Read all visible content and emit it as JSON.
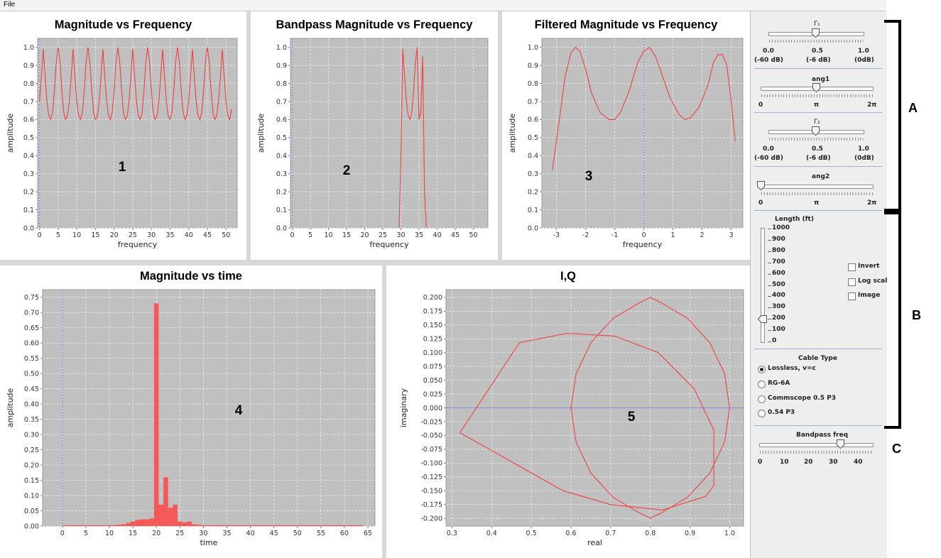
{
  "menu": {
    "file": "File"
  },
  "charts": [
    {
      "id": "c1",
      "type": "line",
      "title": "Magnitude vs Frequency",
      "xlabel": "frequency",
      "ylabel": "amplitude",
      "marker": "1",
      "xlim": [
        -0.5,
        53
      ],
      "ylim": [
        0,
        1.05
      ],
      "xticks": [
        0,
        5,
        10,
        15,
        20,
        25,
        30,
        35,
        40,
        45,
        50
      ],
      "yticks": [
        0.0,
        0.1,
        0.2,
        0.3,
        0.4,
        0.5,
        0.6,
        0.7,
        0.8,
        0.9,
        1.0
      ],
      "ytick_labels": [
        "0.0",
        "0.1",
        "0.2",
        "0.3",
        "0.4",
        "0.5",
        "0.6",
        "0.7",
        "0.8",
        "0.9",
        "1.0"
      ],
      "series": [
        {
          "color": "#f04040",
          "x": [
            0,
            0.5,
            1.0,
            1.5,
            2.0,
            2.5,
            3.0,
            3.5,
            4.0,
            4.5,
            5.0,
            5.5,
            6.0,
            6.5,
            7.0,
            7.5,
            8.0,
            8.5,
            9.0,
            9.5,
            10.0,
            10.5,
            11.0,
            11.5,
            12.0,
            12.5,
            13.0,
            13.5,
            14.0,
            14.5,
            15.0,
            15.5,
            16.0,
            16.5,
            17.0,
            17.5,
            18.0,
            18.5,
            19.0,
            19.5,
            20.0,
            20.5,
            21.0,
            21.5,
            22.0,
            22.5,
            23.0,
            23.5,
            24.0,
            24.5,
            25.0,
            25.5,
            26.0,
            26.5,
            27.0,
            27.5,
            28.0,
            28.5,
            29.0,
            29.5,
            30.0,
            30.5,
            31.0,
            31.5,
            32.0,
            32.5,
            33.0,
            33.5,
            34.0,
            34.5,
            35.0,
            35.5,
            36.0,
            36.5,
            37.0,
            37.5,
            38.0,
            38.5,
            39.0,
            39.5,
            40.0,
            40.5,
            41.0,
            41.5,
            42.0,
            42.5,
            43.0,
            43.5,
            44.0,
            44.5,
            45.0,
            45.5,
            46.0,
            46.5,
            47.0,
            47.5,
            48.0,
            48.5,
            49.0,
            49.5,
            50.0,
            50.5,
            51.0,
            51.5
          ],
          "y": [
            0.7,
            0.84,
            0.99,
            0.84,
            0.7,
            0.62,
            0.6,
            0.64,
            0.76,
            0.92,
            1.0,
            0.92,
            0.76,
            0.64,
            0.6,
            0.62,
            0.7,
            0.84,
            0.99,
            0.84,
            0.7,
            0.62,
            0.6,
            0.64,
            0.76,
            0.92,
            1.0,
            0.92,
            0.76,
            0.64,
            0.6,
            0.62,
            0.7,
            0.84,
            0.99,
            0.84,
            0.7,
            0.62,
            0.6,
            0.64,
            0.76,
            0.92,
            1.0,
            0.92,
            0.76,
            0.64,
            0.6,
            0.62,
            0.7,
            0.84,
            0.99,
            0.84,
            0.7,
            0.62,
            0.6,
            0.64,
            0.76,
            0.92,
            1.0,
            0.92,
            0.76,
            0.64,
            0.6,
            0.62,
            0.7,
            0.84,
            0.99,
            0.84,
            0.7,
            0.62,
            0.6,
            0.64,
            0.76,
            0.92,
            1.0,
            0.92,
            0.76,
            0.64,
            0.6,
            0.62,
            0.7,
            0.84,
            0.99,
            0.84,
            0.7,
            0.62,
            0.6,
            0.64,
            0.76,
            0.92,
            1.0,
            0.92,
            0.76,
            0.64,
            0.6,
            0.62,
            0.7,
            0.84,
            0.99,
            0.84,
            0.7,
            0.62,
            0.6,
            0.66
          ]
        }
      ]
    },
    {
      "id": "c2",
      "type": "line",
      "title": "Bandpass Magnitude vs Frequency",
      "xlabel": "frequency",
      "ylabel": "amplitude",
      "marker": "2",
      "xlim": [
        -0.5,
        54
      ],
      "ylim": [
        0,
        1.05
      ],
      "xticks": [
        0,
        5,
        10,
        15,
        20,
        25,
        30,
        35,
        40,
        45,
        50
      ],
      "yticks": [
        0.0,
        0.1,
        0.2,
        0.3,
        0.4,
        0.5,
        0.6,
        0.7,
        0.8,
        0.9,
        1.0
      ],
      "ytick_labels": [
        "0.0",
        "0.1",
        "0.2",
        "0.3",
        "0.4",
        "0.5",
        "0.6",
        "0.7",
        "0.8",
        "0.9",
        "1.0"
      ],
      "series": [
        {
          "color": "#f04040",
          "x": [
            29.5,
            30.0,
            30.5,
            31.0,
            31.5,
            32.0,
            32.5,
            33.0,
            33.5,
            34.0,
            34.5,
            35.0,
            35.5,
            36.0,
            36.5,
            37.0
          ],
          "y": [
            0.0,
            0.4,
            0.99,
            0.84,
            0.7,
            0.62,
            0.6,
            0.64,
            0.76,
            0.92,
            1.0,
            0.6,
            0.64,
            0.95,
            0.2,
            0.0
          ]
        }
      ]
    },
    {
      "id": "c3",
      "type": "line",
      "title": "Filtered Magnitude vs Frequency",
      "xlabel": "frequency",
      "ylabel": "amplitude",
      "marker": "3",
      "xlim": [
        -3.5,
        3.4
      ],
      "ylim": [
        0,
        1.05
      ],
      "xticks": [
        -3,
        -2,
        -1,
        0,
        1,
        2,
        3
      ],
      "yticks": [
        0.0,
        0.1,
        0.2,
        0.3,
        0.4,
        0.5,
        0.6,
        0.7,
        0.8,
        0.9,
        1.0
      ],
      "ytick_labels": [
        "0.0",
        "0.1",
        "0.2",
        "0.3",
        "0.4",
        "0.5",
        "0.6",
        "0.7",
        "0.8",
        "0.9",
        "1.0"
      ],
      "series": [
        {
          "color": "#f04040",
          "x": [
            -3.14,
            -2.9,
            -2.7,
            -2.5,
            -2.35,
            -2.2,
            -2.0,
            -1.8,
            -1.5,
            -1.2,
            -1.0,
            -0.8,
            -0.5,
            -0.2,
            0.0,
            0.2,
            0.4,
            0.6,
            0.9,
            1.2,
            1.4,
            1.6,
            1.9,
            2.2,
            2.4,
            2.55,
            2.7,
            2.85,
            3.0,
            3.14
          ],
          "y": [
            0.32,
            0.6,
            0.84,
            0.97,
            1.0,
            0.98,
            0.88,
            0.75,
            0.64,
            0.6,
            0.6,
            0.64,
            0.76,
            0.92,
            0.98,
            1.0,
            0.95,
            0.86,
            0.72,
            0.63,
            0.6,
            0.61,
            0.67,
            0.79,
            0.92,
            0.96,
            0.96,
            0.9,
            0.7,
            0.48
          ]
        }
      ]
    },
    {
      "id": "c4",
      "type": "bar",
      "title": "Magnitude vs time",
      "xlabel": "time",
      "ylabel": "amplitude",
      "marker": "4",
      "xlim": [
        -4.2,
        66.5
      ],
      "ylim": [
        0,
        0.775
      ],
      "xticks": [
        0,
        5,
        10,
        15,
        20,
        25,
        30,
        35,
        40,
        45,
        50,
        55,
        60,
        65
      ],
      "yticks": [
        0.0,
        0.05,
        0.1,
        0.15,
        0.2,
        0.25,
        0.3,
        0.35,
        0.4,
        0.45,
        0.5,
        0.55,
        0.6,
        0.65,
        0.7,
        0.75
      ],
      "ytick_labels": [
        "0.00",
        "0.05",
        "0.10",
        "0.15",
        "0.20",
        "0.25",
        "0.30",
        "0.35",
        "0.40",
        "0.45",
        "0.50",
        "0.55",
        "0.60",
        "0.65",
        "0.70",
        "0.75"
      ],
      "series": [
        {
          "color": "#f65858",
          "x": [
            11,
            12,
            13,
            14,
            15,
            16,
            17,
            18,
            19,
            20,
            21,
            22,
            23,
            24,
            25,
            26,
            27,
            28,
            29,
            30,
            31,
            32,
            33,
            34,
            35
          ],
          "y": [
            0.002,
            0.004,
            0.006,
            0.01,
            0.015,
            0.02,
            0.022,
            0.022,
            0.025,
            0.73,
            0.07,
            0.16,
            0.06,
            0.07,
            0.015,
            0.012,
            0.015,
            0.006,
            0.004,
            0.003,
            0.002,
            0.002,
            0.001,
            0.001,
            0.001
          ]
        }
      ]
    },
    {
      "id": "c5",
      "type": "scatter",
      "title": "I,Q",
      "xlabel": "real",
      "ylabel": "imaginary",
      "marker": "5",
      "xlim": [
        0.285,
        1.035
      ],
      "ylim": [
        -0.214,
        0.214
      ],
      "xticks": [
        0.3,
        0.4,
        0.5,
        0.6,
        0.7,
        0.8,
        0.9,
        1.0
      ],
      "xtick_labels": [
        "0.3",
        "0.4",
        "0.5",
        "0.6",
        "0.7",
        "0.8",
        "0.9",
        "1.0"
      ],
      "yticks": [
        -0.2,
        -0.175,
        -0.15,
        -0.125,
        -0.1,
        -0.075,
        -0.05,
        -0.025,
        0.0,
        0.025,
        0.05,
        0.075,
        0.1,
        0.125,
        0.15,
        0.175,
        0.2
      ],
      "ytick_labels": [
        "-0.200",
        "-0.175",
        "-0.150",
        "-0.125",
        "-0.100",
        "-0.075",
        "-0.050",
        "-0.025",
        "0.000",
        "0.025",
        "0.050",
        "0.075",
        "0.100",
        "0.125",
        "0.150",
        "0.175",
        "0.200"
      ],
      "series": [
        {
          "color": "#f04040",
          "x": [
            1.0,
            0.987,
            0.95,
            0.894,
            0.828,
            0.8,
            0.772,
            0.706,
            0.65,
            0.613,
            0.6,
            0.613,
            0.65,
            0.706,
            0.772,
            0.8,
            0.828,
            0.894,
            0.95,
            0.987,
            1.0
          ],
          "y": [
            0.0,
            0.062,
            0.118,
            0.162,
            0.19,
            0.2,
            0.19,
            0.162,
            0.118,
            0.062,
            0.0,
            -0.062,
            -0.118,
            -0.162,
            -0.19,
            -0.2,
            -0.19,
            -0.162,
            -0.118,
            -0.062,
            0.0
          ]
        },
        {
          "color": "#f04040",
          "x": [
            0.32,
            0.47,
            0.59,
            0.71,
            0.82,
            0.91,
            0.96,
            0.96,
            0.94,
            0.83,
            0.7,
            0.58,
            0.32
          ],
          "y": [
            -0.045,
            0.118,
            0.135,
            0.13,
            0.1,
            0.035,
            -0.04,
            -0.14,
            -0.16,
            -0.185,
            -0.175,
            -0.15,
            -0.045
          ]
        }
      ]
    }
  ],
  "controls": {
    "gamma1": {
      "label": "Γ₁",
      "value": 0.5,
      "ticks": [
        "0.0",
        "0.5",
        "1.0"
      ],
      "ticks_sub": [
        "(-60 dB)",
        "(-6 dB)",
        "(0dB)"
      ]
    },
    "ang1": {
      "label": "ang1",
      "value": 0.5,
      "ticks": [
        "0",
        "π",
        "2π"
      ]
    },
    "gamma2": {
      "label": "Γ₂",
      "value": 0.5,
      "ticks": [
        "0.0",
        "0.5",
        "1.0"
      ],
      "ticks_sub": [
        "(-60 dB)",
        "(-6 dB)",
        "(0dB)"
      ]
    },
    "ang2": {
      "label": "ang2",
      "value": 0.0,
      "ticks": [
        "0",
        "π",
        "2π"
      ]
    },
    "length": {
      "label": "Length (ft)",
      "value": 200,
      "max": 1000,
      "ticks": [
        "1000",
        "900",
        "800",
        "700",
        "600",
        "500",
        "400",
        "300",
        "200",
        "100",
        "0"
      ]
    },
    "checkboxes": [
      {
        "label": "Invert",
        "checked": false
      },
      {
        "label": "Log scal",
        "checked": false
      },
      {
        "label": "Image",
        "checked": false
      }
    ],
    "cable": {
      "title": "Cable Type",
      "options": [
        {
          "label": "Lossless, v=c",
          "selected": true
        },
        {
          "label": "RG-6A",
          "selected": false
        },
        {
          "label": "Commscope 0.5 P3",
          "selected": false
        },
        {
          "label": "0.54 P3",
          "selected": false
        }
      ]
    },
    "bandpass": {
      "label": "Bandpass freq",
      "value": 33,
      "min": 0,
      "max": 46,
      "ticks": [
        "0",
        "10",
        "20",
        "30",
        "40"
      ]
    }
  },
  "annotations": {
    "A": "A",
    "B": "B",
    "C": "C"
  }
}
